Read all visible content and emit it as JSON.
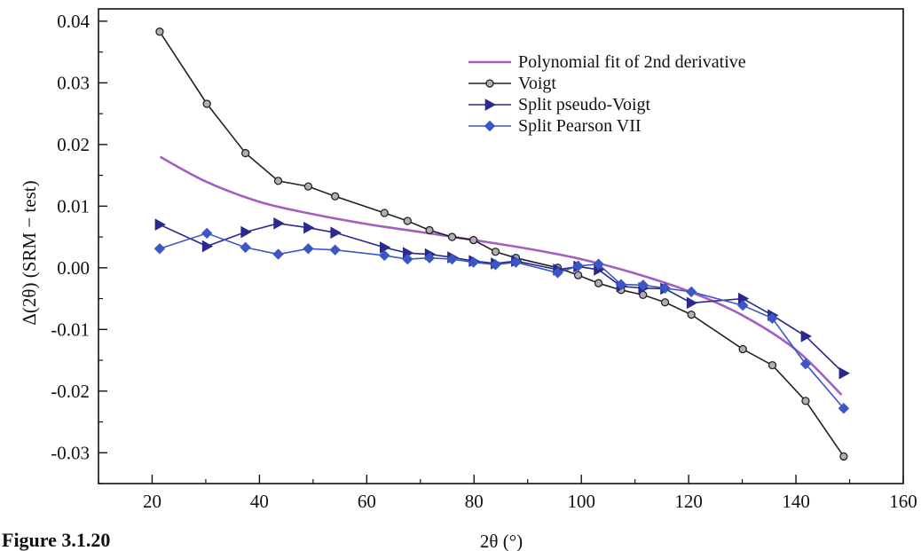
{
  "figure_caption": "Figure 3.1.20",
  "chart_data": {
    "type": "line",
    "title": "",
    "xlabel": "2θ (°)",
    "ylabel": "Δ(2θ) (SRM − test)",
    "xlim": [
      10,
      160
    ],
    "ylim": [
      -0.035,
      0.042
    ],
    "xticks": [
      20,
      40,
      60,
      80,
      100,
      120,
      140,
      160
    ],
    "xtick_labels": [
      "20",
      "40",
      "60",
      "80",
      "100",
      "120",
      "140",
      "160"
    ],
    "yticks": [
      -0.03,
      -0.02,
      -0.01,
      0.0,
      0.01,
      0.02,
      0.03,
      0.04
    ],
    "ytick_labels": [
      "-0.03",
      "-0.02",
      "-0.01",
      "0.00",
      "0.01",
      "0.02",
      "0.03",
      "0.04"
    ],
    "grid": false,
    "legend_position": "top-right",
    "series": [
      {
        "name": "Polynomial fit of 2nd derivative",
        "color": "#a45ec0",
        "marker": "none",
        "x": [
          21.5,
          30,
          40,
          50,
          60,
          70,
          80,
          90,
          100,
          110,
          120,
          130,
          140,
          148.5
        ],
        "y": [
          0.018,
          0.014,
          0.0107,
          0.0087,
          0.0071,
          0.0058,
          0.0045,
          0.0031,
          0.0014,
          -0.0009,
          -0.0038,
          -0.0077,
          -0.0133,
          -0.0206
        ]
      },
      {
        "name": "Voigt",
        "color": "#222222",
        "marker": "circle",
        "x": [
          21.4,
          30.2,
          37.4,
          43.5,
          49.1,
          54.1,
          63.3,
          67.6,
          71.7,
          75.9,
          79.9,
          84,
          87.8,
          95.6,
          99.4,
          103.2,
          107.4,
          111.5,
          115.6,
          120.5,
          130.1,
          135.6,
          141.8,
          148.9
        ],
        "y": [
          0.0383,
          0.0266,
          0.0186,
          0.0141,
          0.0132,
          0.0116,
          0.0089,
          0.0076,
          0.0061,
          0.005,
          0.0045,
          0.0026,
          0.0016,
          0.0,
          -0.0012,
          -0.0025,
          -0.0036,
          -0.0044,
          -0.0056,
          -0.0076,
          -0.0132,
          -0.0158,
          -0.0216,
          -0.0306
        ]
      },
      {
        "name": "Split pseudo-Voigt",
        "color": "#2a2a8c",
        "marker": "triangle-right",
        "x": [
          21.4,
          30.2,
          37.4,
          43.5,
          49.1,
          54.1,
          63.3,
          67.6,
          71.7,
          75.9,
          79.9,
          84,
          87.8,
          95.6,
          99.4,
          103.2,
          107.4,
          111.5,
          115.6,
          120.5,
          130.1,
          135.6,
          141.8,
          148.9
        ],
        "y": [
          0.007,
          0.0035,
          0.0058,
          0.0072,
          0.0065,
          0.0057,
          0.0033,
          0.0024,
          0.0022,
          0.0017,
          0.0011,
          0.0007,
          0.0011,
          -0.0003,
          0.0002,
          -0.0003,
          -0.003,
          -0.0033,
          -0.0034,
          -0.0057,
          -0.005,
          -0.0077,
          -0.0111,
          -0.0171
        ]
      },
      {
        "name": "Split Pearson VII",
        "color": "#3b57c4",
        "marker": "diamond",
        "x": [
          21.4,
          30.2,
          37.4,
          43.5,
          49.1,
          54.1,
          63.3,
          67.6,
          71.7,
          75.9,
          79.9,
          84,
          87.8,
          95.6,
          99.4,
          103.2,
          107.4,
          111.5,
          115.6,
          120.5,
          130.1,
          135.6,
          141.8,
          148.9
        ],
        "y": [
          0.0031,
          0.0056,
          0.0033,
          0.0022,
          0.0031,
          0.0029,
          0.002,
          0.0014,
          0.0016,
          0.0014,
          0.0009,
          0.0005,
          0.0009,
          -0.0008,
          0.0003,
          0.0006,
          -0.0027,
          -0.0028,
          -0.0033,
          -0.0039,
          -0.0061,
          -0.0082,
          -0.0156,
          -0.0228
        ]
      }
    ]
  }
}
